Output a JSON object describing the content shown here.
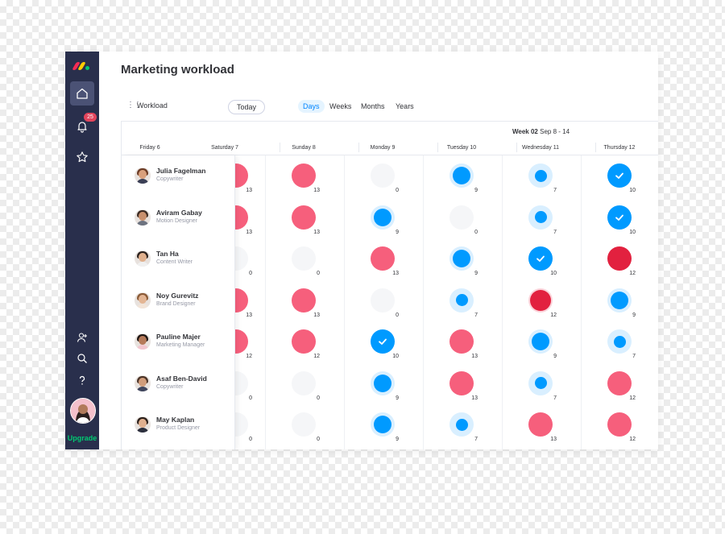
{
  "page_title": "Marketing workload",
  "toolbar": {
    "workload_label": "Workload",
    "today_label": "Today",
    "views": [
      "Days",
      "Weeks",
      "Months",
      "Years"
    ],
    "active_view": "Days"
  },
  "sidebar": {
    "notification_count": "25",
    "upgrade_label": "Upgrade"
  },
  "week": {
    "label": "Week 02",
    "range": "Sep 8 - 14"
  },
  "days": [
    "Friday 6",
    "Saturday 7",
    "Sunday 8",
    "Monday 9",
    "Tuesday 10",
    "Wednesday 11",
    "Thursday 12"
  ],
  "colors": {
    "over": "#f65f7c",
    "over_dark": "#e2213f",
    "under": "#009aff",
    "under_ring": "#d9efff",
    "empty": "#f5f6f8",
    "sidebar": "#292f4c"
  },
  "people": [
    {
      "name": "Julia Fagelman",
      "role": "Copywriter",
      "avatar": {
        "skin": "#d9a07c",
        "hair": "#6b3b24",
        "shirt": "#3a3f55"
      },
      "cells": [
        {
          "s": "over",
          "v": "13"
        },
        {
          "s": "over",
          "v": "13"
        },
        {
          "s": "empty",
          "v": "0"
        },
        {
          "s": "under-ring",
          "v": "9"
        },
        {
          "s": "under-small",
          "v": "7"
        },
        {
          "s": "check",
          "v": "10"
        }
      ]
    },
    {
      "name": "Aviram Gabay",
      "role": "Motion Designer",
      "avatar": {
        "skin": "#c9906d",
        "hair": "#3b2a22",
        "shirt": "#6d7380"
      },
      "cells": [
        {
          "s": "over",
          "v": "13"
        },
        {
          "s": "over",
          "v": "13"
        },
        {
          "s": "under-ring",
          "v": "9"
        },
        {
          "s": "empty",
          "v": "0"
        },
        {
          "s": "under-small",
          "v": "7"
        },
        {
          "s": "check",
          "v": "10"
        }
      ]
    },
    {
      "name": "Tan Ha",
      "role": "Content Writer",
      "avatar": {
        "skin": "#e0b08d",
        "hair": "#2a211d",
        "shirt": "#f0f0f0"
      },
      "cells": [
        {
          "s": "empty",
          "v": "0"
        },
        {
          "s": "empty",
          "v": "0"
        },
        {
          "s": "over",
          "v": "13"
        },
        {
          "s": "under-ring",
          "v": "9"
        },
        {
          "s": "check",
          "v": "10"
        },
        {
          "s": "over-dark",
          "v": "12"
        }
      ]
    },
    {
      "name": "Noy Gurevitz",
      "role": "Brand Designer",
      "avatar": {
        "skin": "#e3b594",
        "hair": "#8a5a36",
        "shirt": "#f2e4d8"
      },
      "cells": [
        {
          "s": "over",
          "v": "13"
        },
        {
          "s": "over",
          "v": "13"
        },
        {
          "s": "empty",
          "v": "0"
        },
        {
          "s": "under-small",
          "v": "7"
        },
        {
          "s": "over-dark-ring",
          "v": "12"
        },
        {
          "s": "under-ring",
          "v": "9"
        }
      ]
    },
    {
      "name": "Pauline Majer",
      "role": "Marketing Manager",
      "avatar": {
        "skin": "#b57a5a",
        "hair": "#1e1614",
        "shirt": "#f2c6cf"
      },
      "cells": [
        {
          "s": "over",
          "v": "12"
        },
        {
          "s": "over",
          "v": "12"
        },
        {
          "s": "check",
          "v": "10"
        },
        {
          "s": "over",
          "v": "13"
        },
        {
          "s": "under-ring",
          "v": "9"
        },
        {
          "s": "under-small",
          "v": "7"
        }
      ]
    },
    {
      "name": "Asaf Ben-David",
      "role": "Copywriter",
      "avatar": {
        "skin": "#d19d7b",
        "hair": "#4a3327",
        "shirt": "#40465d"
      },
      "cells": [
        {
          "s": "empty",
          "v": "0"
        },
        {
          "s": "empty",
          "v": "0"
        },
        {
          "s": "under-ring",
          "v": "9"
        },
        {
          "s": "over",
          "v": "13"
        },
        {
          "s": "under-small",
          "v": "7"
        },
        {
          "s": "over",
          "v": "12"
        }
      ]
    },
    {
      "name": "May Kaplan",
      "role": "Product Designer",
      "avatar": {
        "skin": "#e1b08f",
        "hair": "#2b1f1a",
        "shirt": "#2c2f3d"
      },
      "cells": [
        {
          "s": "empty",
          "v": "0"
        },
        {
          "s": "empty",
          "v": "0"
        },
        {
          "s": "under-ring",
          "v": "9"
        },
        {
          "s": "under-small",
          "v": "7"
        },
        {
          "s": "over",
          "v": "13"
        },
        {
          "s": "over",
          "v": "12"
        }
      ]
    }
  ]
}
